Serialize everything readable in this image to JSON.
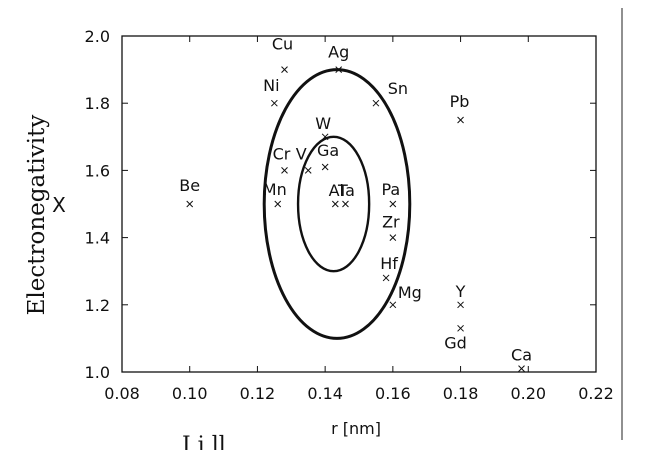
{
  "chart_data": {
    "type": "scatter",
    "title": "",
    "xlabel": "r [nm]",
    "ylabel": "Electronegativity",
    "ylabel_symbol": "X",
    "cropped_caption_fragment": "I i ll",
    "xlim": [
      0.08,
      0.22
    ],
    "ylim": [
      1.0,
      2.0
    ],
    "xticks": [
      0.08,
      0.1,
      0.12,
      0.14,
      0.16,
      0.18,
      0.2,
      0.22
    ],
    "yticks": [
      1.0,
      1.2,
      1.4,
      1.6,
      1.8,
      2.0
    ],
    "xtick_labels": [
      "0.08",
      "0.10",
      "0.12",
      "0.14",
      "0.16",
      "0.18",
      "0.20",
      "0.22"
    ],
    "ytick_labels": [
      "1.0",
      "1.2",
      "1.4",
      "1.6",
      "1.8",
      "2.0"
    ],
    "grid": false,
    "marker": "x",
    "color": "#111111",
    "points": [
      {
        "label": "Be",
        "x": 0.1,
        "y": 1.5
      },
      {
        "label": "Cu",
        "x": 0.128,
        "y": 1.9
      },
      {
        "label": "Ni",
        "x": 0.125,
        "y": 1.8
      },
      {
        "label": "Ag",
        "x": 0.144,
        "y": 1.9
      },
      {
        "label": "Sn",
        "x": 0.155,
        "y": 1.8
      },
      {
        "label": "Pb",
        "x": 0.18,
        "y": 1.75
      },
      {
        "label": "W",
        "x": 0.14,
        "y": 1.7
      },
      {
        "label": "Cr",
        "x": 0.128,
        "y": 1.6
      },
      {
        "label": "V",
        "x": 0.135,
        "y": 1.6
      },
      {
        "label": "Ga",
        "x": 0.14,
        "y": 1.61
      },
      {
        "label": "Mn",
        "x": 0.126,
        "y": 1.5
      },
      {
        "label": "Al",
        "x": 0.143,
        "y": 1.5
      },
      {
        "label": "Ta",
        "x": 0.146,
        "y": 1.5
      },
      {
        "label": "Pa",
        "x": 0.16,
        "y": 1.5
      },
      {
        "label": "Zr",
        "x": 0.16,
        "y": 1.4
      },
      {
        "label": "Hf",
        "x": 0.158,
        "y": 1.28
      },
      {
        "label": "Mg",
        "x": 0.16,
        "y": 1.2
      },
      {
        "label": "Y",
        "x": 0.18,
        "y": 1.2
      },
      {
        "label": "Gd",
        "x": 0.18,
        "y": 1.13
      },
      {
        "label": "Ca",
        "x": 0.198,
        "y": 1.01
      }
    ],
    "regions": [
      {
        "shape": "ellipse",
        "cx": 0.1435,
        "cy": 1.5,
        "rx": 0.0215,
        "ry": 0.4
      },
      {
        "shape": "ellipse",
        "cx": 0.1425,
        "cy": 1.5,
        "rx": 0.0105,
        "ry": 0.2
      }
    ]
  }
}
